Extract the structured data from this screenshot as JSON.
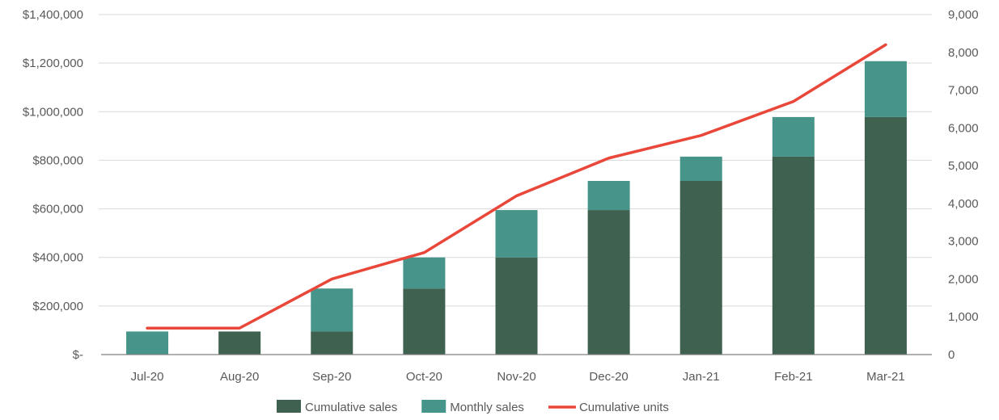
{
  "chart_data": {
    "type": "bar",
    "stacked": true,
    "categories": [
      "Jul-20",
      "Aug-20",
      "Sep-20",
      "Oct-20",
      "Nov-20",
      "Dec-20",
      "Jan-21",
      "Feb-21",
      "Mar-21"
    ],
    "series": [
      {
        "name": "Cumulative sales",
        "kind": "bar",
        "axis": "left",
        "color": "#3f6150",
        "values": [
          0,
          95000,
          95000,
          272000,
          400000,
          595000,
          715000,
          815000,
          978000
        ]
      },
      {
        "name": "Monthly sales",
        "kind": "bar",
        "axis": "left",
        "color": "#47958a",
        "values": [
          95000,
          0,
          177000,
          128000,
          195000,
          120000,
          100000,
          163000,
          230000
        ]
      },
      {
        "name": "Cumulative units",
        "kind": "line",
        "axis": "right",
        "color": "#e8473a",
        "values": [
          700,
          700,
          2000,
          2700,
          4200,
          5200,
          5800,
          6700,
          8200
        ]
      }
    ],
    "y_left": {
      "min": 0,
      "max": 1400000,
      "step": 200000,
      "tick_labels": [
        "$-",
        "$200,000",
        "$400,000",
        "$600,000",
        "$800,000",
        "$1,000,000",
        "$1,200,000",
        "$1,400,000"
      ]
    },
    "y_right": {
      "min": 0,
      "max": 9000,
      "step": 1000,
      "tick_labels": [
        "0",
        "1,000",
        "2,000",
        "3,000",
        "4,000",
        "5,000",
        "6,000",
        "7,000",
        "8,000",
        "9,000"
      ]
    },
    "grid": true,
    "legend_position": "bottom",
    "title": "",
    "xlabel": "",
    "ylabel": ""
  }
}
